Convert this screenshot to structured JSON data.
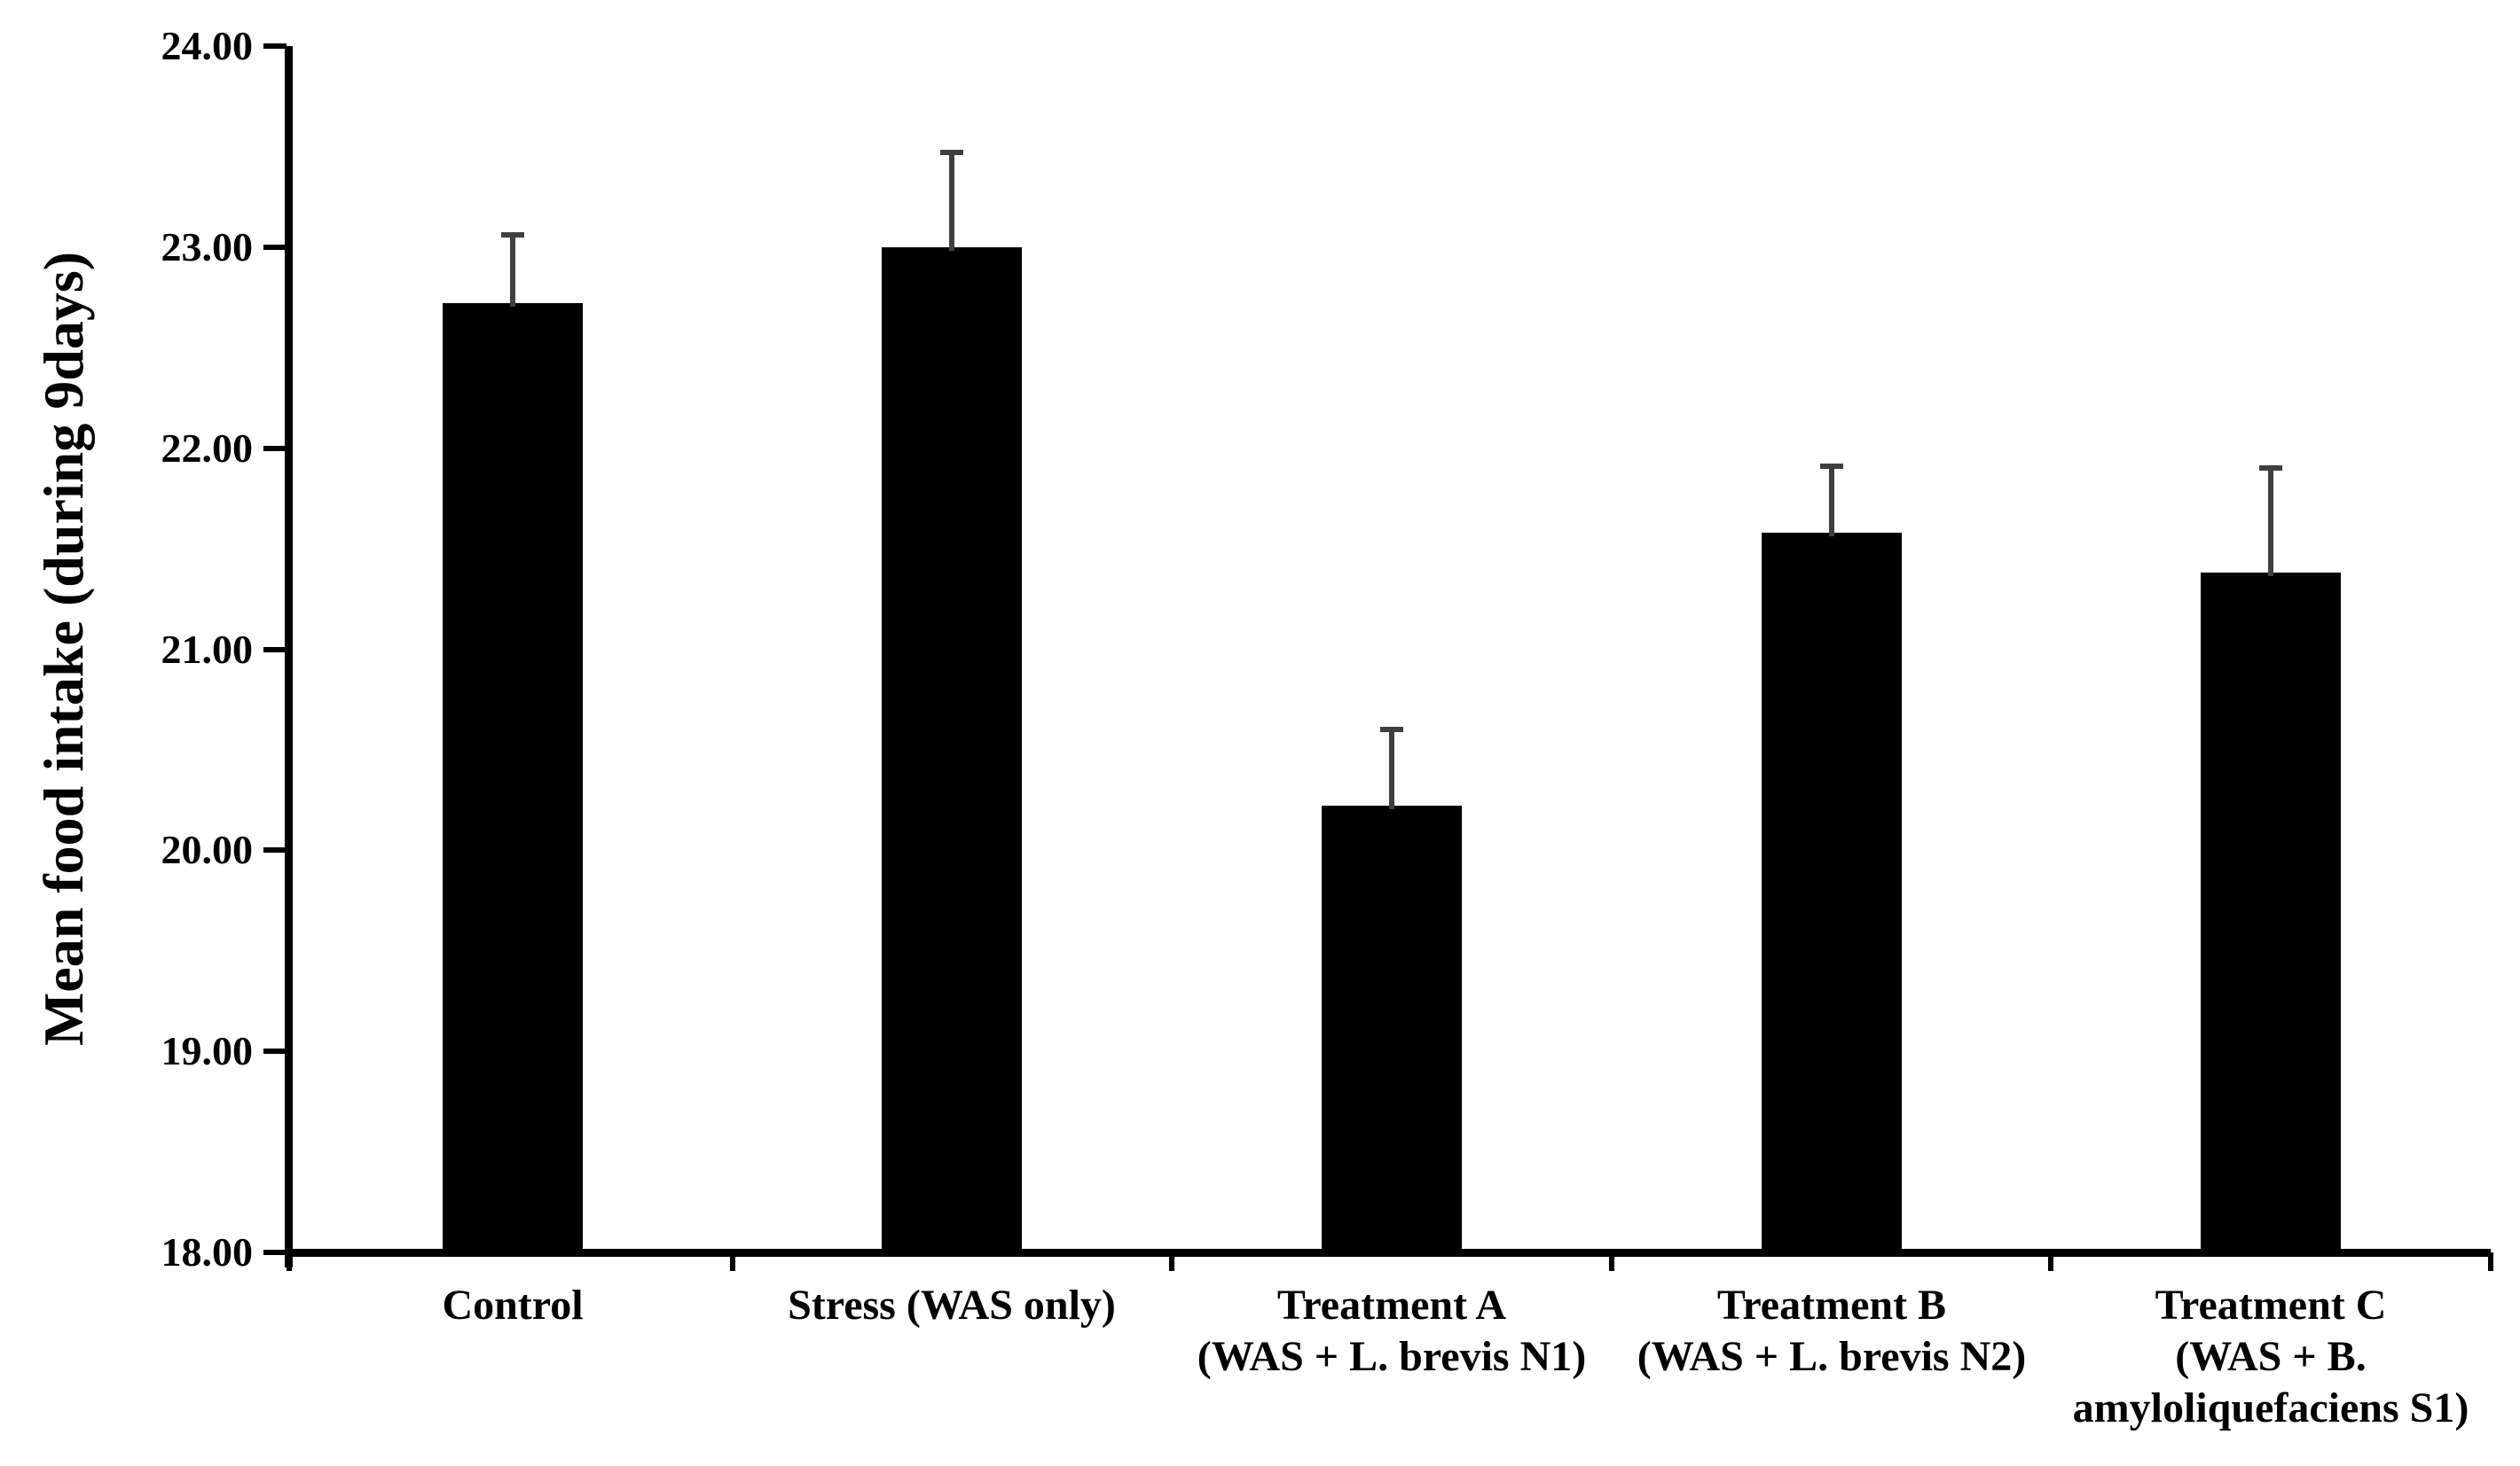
{
  "chart_data": {
    "type": "bar",
    "title": "",
    "xlabel": "",
    "ylabel": "Mean food intake (during 9days)",
    "ylim": [
      18,
      24
    ],
    "grid": false,
    "legend": "none",
    "bar_color": "#000000",
    "error_bar_color": "#3f3f3f",
    "axis_color": "#000000",
    "yticks": [
      {
        "value": 18,
        "label": "18.00"
      },
      {
        "value": 19,
        "label": "19.00"
      },
      {
        "value": 20,
        "label": "20.00"
      },
      {
        "value": 21,
        "label": "21.00"
      },
      {
        "value": 22,
        "label": "22.00"
      },
      {
        "value": 23,
        "label": "23.00"
      },
      {
        "value": 24,
        "label": "24.00"
      }
    ],
    "categories": [
      "Control",
      "Stress (WAS only)",
      "Treatment A (WAS + L. brevis N1)",
      "Treatment B (WAS + L. brevis N2)",
      "Treatment C (WAS + B. amyloliquefaciens S1)"
    ],
    "series": [
      {
        "name": "Mean food intake",
        "points": [
          {
            "label_lines": [
              "Control"
            ],
            "value": 22.72,
            "error_plus": 0.34
          },
          {
            "label_lines": [
              "Stress (WAS only)"
            ],
            "value": 23.0,
            "error_plus": 0.47
          },
          {
            "label_lines": [
              "Treatment A",
              "(WAS + L. brevis N1)"
            ],
            "value": 20.22,
            "error_plus": 0.38
          },
          {
            "label_lines": [
              "Treatment B",
              "(WAS + L. brevis N2)"
            ],
            "value": 21.58,
            "error_plus": 0.33
          },
          {
            "label_lines": [
              "Treatment C",
              "(WAS + B.",
              "amyloliquefaciens S1)"
            ],
            "value": 21.38,
            "error_plus": 0.52
          }
        ]
      }
    ]
  }
}
